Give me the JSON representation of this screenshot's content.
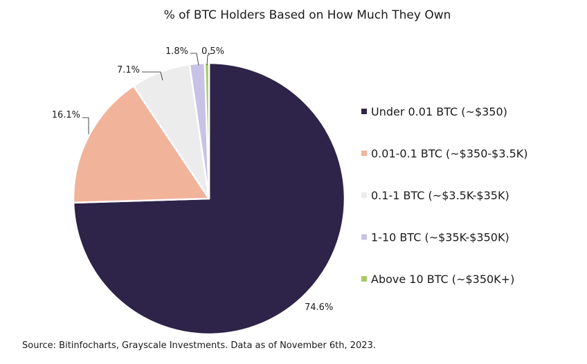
{
  "chart_data": {
    "type": "pie",
    "title": "% of BTC Holders Based on How Much They Own",
    "slices": [
      {
        "label": "Under 0.01 BTC (~$350)",
        "value": 74.6,
        "value_label": "74.6%",
        "color": "#2e2348"
      },
      {
        "label": "0.01-0.1 BTC (~$350-$3.5K)",
        "value": 16.1,
        "value_label": "16.1%",
        "color": "#f2b39b"
      },
      {
        "label": "0.1-1 BTC (~$3.5K-$35K)",
        "value": 7.1,
        "value_label": "7.1%",
        "color": "#ececec"
      },
      {
        "label": "1-10 BTC (~$35K-$350K)",
        "value": 1.8,
        "value_label": "1.8%",
        "color": "#c8c2e6"
      },
      {
        "label": "Above 10 BTC (~$350K+)",
        "value": 0.5,
        "value_label": "0.5%",
        "color": "#a8c96a"
      }
    ],
    "legend_position": "right"
  },
  "source": "Source: Bitinfocharts, Grayscale Investments. Data as of November 6th, 2023."
}
